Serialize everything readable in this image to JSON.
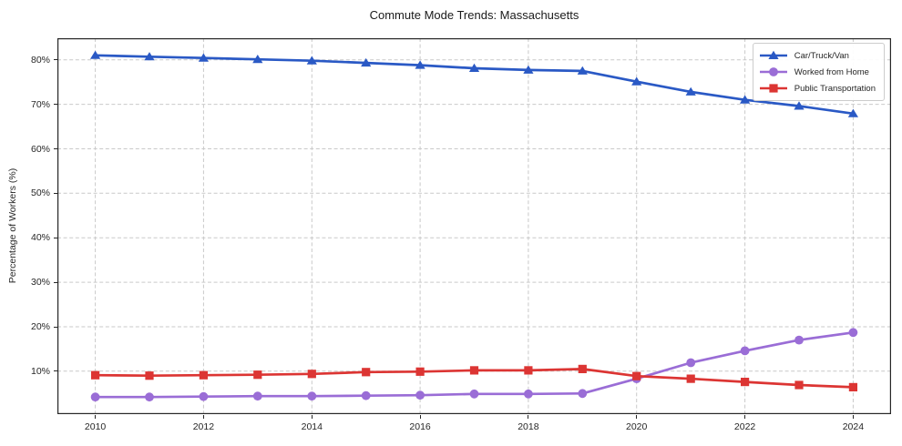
{
  "chart_data": {
    "type": "line",
    "title": "Commute Mode Trends: Massachusetts",
    "xlabel": "",
    "ylabel": "Percentage of Workers (%)",
    "x": [
      2010,
      2011,
      2012,
      2013,
      2014,
      2015,
      2016,
      2017,
      2018,
      2019,
      2020,
      2021,
      2022,
      2023,
      2024
    ],
    "series": [
      {
        "name": "Car/Truck/Van",
        "color": "#2a59c5",
        "marker": "triangle",
        "values": [
          81.0,
          80.7,
          80.4,
          80.1,
          79.8,
          79.3,
          78.8,
          78.1,
          77.7,
          77.5,
          75.1,
          72.8,
          71.0,
          69.6,
          67.9
        ]
      },
      {
        "name": "Worked from Home",
        "color": "#9a6dd6",
        "marker": "circle",
        "values": [
          4.2,
          4.2,
          4.3,
          4.4,
          4.4,
          4.5,
          4.6,
          4.9,
          4.9,
          5.0,
          8.3,
          11.9,
          14.6,
          17.0,
          18.7
        ]
      },
      {
        "name": "Public Transportation",
        "color": "#dc3533",
        "marker": "square",
        "values": [
          9.1,
          9.0,
          9.1,
          9.2,
          9.4,
          9.8,
          9.9,
          10.2,
          10.2,
          10.5,
          8.9,
          8.3,
          7.6,
          6.9,
          6.4
        ]
      }
    ],
    "xticks": [
      2010,
      2012,
      2014,
      2016,
      2018,
      2020,
      2022,
      2024
    ],
    "yticks": [
      10,
      20,
      30,
      40,
      50,
      60,
      70,
      80
    ],
    "ytick_suffix": "%",
    "xlim": [
      2009.3,
      2024.7
    ],
    "ylim": [
      0.35,
      84.85
    ],
    "grid": true,
    "grid_style": "dashed",
    "legend_position": "upper-right",
    "colors": {
      "grid": "#c9c9c9",
      "spine": "#262626",
      "text": "#262626"
    }
  }
}
